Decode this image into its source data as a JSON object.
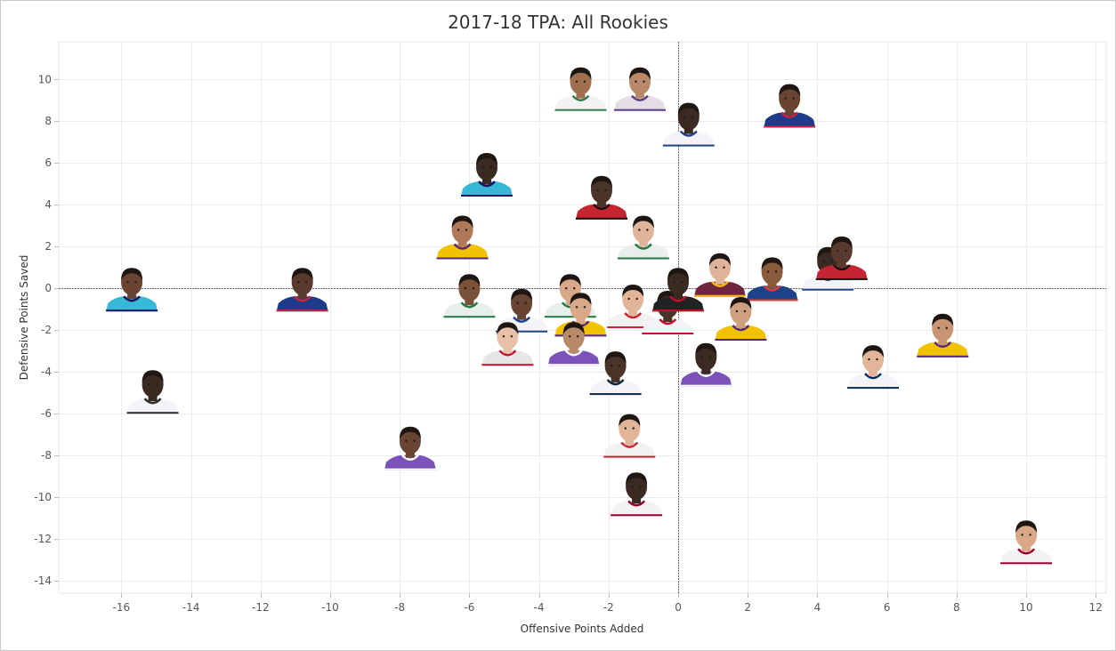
{
  "chart_data": {
    "type": "scatter",
    "title": "2017-18 TPA: All Rookies",
    "xlabel": "Offensive Points Added",
    "ylabel": "Defensive Points Saved",
    "xlim": [
      -17.8,
      12.3
    ],
    "ylim": [
      -14.6,
      11.8
    ],
    "xticks": [
      -16,
      -14,
      -12,
      -10,
      -8,
      -6,
      -4,
      -2,
      0,
      2,
      4,
      6,
      8,
      10,
      12
    ],
    "yticks": [
      10,
      8,
      6,
      4,
      2,
      0,
      -2,
      -4,
      -6,
      -8,
      -10,
      -12,
      -14
    ],
    "grid": true,
    "zero_lines": true,
    "marker": "player headshot",
    "points": [
      {
        "x": -2.8,
        "y": 9.3,
        "jersey": "#f2f2f2",
        "trim": "#2e7d4f",
        "skin": "#a0704e"
      },
      {
        "x": -1.1,
        "y": 9.3,
        "jersey": "#e4dde6",
        "trim": "#5a3e8a",
        "skin": "#b9896a"
      },
      {
        "x": 0.3,
        "y": 7.6,
        "jersey": "#f4f4f8",
        "trim": "#1d428a",
        "skin": "#3b2a22"
      },
      {
        "x": 3.2,
        "y": 8.5,
        "jersey": "#1e3a8a",
        "trim": "#d0203a",
        "skin": "#6a4433"
      },
      {
        "x": -5.5,
        "y": 5.2,
        "jersey": "#35b9d6",
        "trim": "#1d1160",
        "skin": "#3a2a22"
      },
      {
        "x": -2.2,
        "y": 4.1,
        "jersey": "#c62433",
        "trim": "#111111",
        "skin": "#4a3428"
      },
      {
        "x": -1.0,
        "y": 2.2,
        "jersey": "#e9eeea",
        "trim": "#1f7a45",
        "skin": "#e0b49a"
      },
      {
        "x": -6.2,
        "y": 2.2,
        "jersey": "#f2c200",
        "trim": "#552583",
        "skin": "#b07a58"
      },
      {
        "x": -15.7,
        "y": -0.3,
        "jersey": "#35b9d6",
        "trim": "#1d1160",
        "skin": "#6a4433"
      },
      {
        "x": -10.8,
        "y": -0.3,
        "jersey": "#1e3a8a",
        "trim": "#d0203a",
        "skin": "#5a3a2c"
      },
      {
        "x": -6.0,
        "y": -0.6,
        "jersey": "#e9eeea",
        "trim": "#1f7a45",
        "skin": "#7a5238"
      },
      {
        "x": -3.1,
        "y": -0.6,
        "jersey": "#e9eeea",
        "trim": "#1f7a45",
        "skin": "#d8a888"
      },
      {
        "x": -1.3,
        "y": -1.1,
        "jersey": "#f2f2f2",
        "trim": "#c62433",
        "skin": "#e3b598"
      },
      {
        "x": -4.5,
        "y": -1.3,
        "jersey": "#f4f4f8",
        "trim": "#1d428a",
        "skin": "#6a4433"
      },
      {
        "x": -2.8,
        "y": -1.5,
        "jersey": "#f2c200",
        "trim": "#552583",
        "skin": "#d8a888"
      },
      {
        "x": -0.3,
        "y": -1.4,
        "jersey": "#f4f4f8",
        "trim": "#c8102e",
        "skin": "#4a3428"
      },
      {
        "x": 0.0,
        "y": -0.3,
        "jersey": "#222222",
        "trim": "#c8102e",
        "skin": "#3b2a22"
      },
      {
        "x": 1.2,
        "y": 0.4,
        "jersey": "#6f263d",
        "trim": "#ffb81c",
        "skin": "#e0b49a"
      },
      {
        "x": 2.7,
        "y": 0.2,
        "jersey": "#1d428a",
        "trim": "#e03a3e",
        "skin": "#8a5a3c"
      },
      {
        "x": 4.3,
        "y": 0.7,
        "jersey": "#f4f4f8",
        "trim": "#1d428a",
        "skin": "#3b2a22"
      },
      {
        "x": 4.7,
        "y": 1.2,
        "jersey": "#c62433",
        "trim": "#111111",
        "skin": "#5a3a2c"
      },
      {
        "x": 1.8,
        "y": -1.7,
        "jersey": "#f2c200",
        "trim": "#552583",
        "skin": "#cfa080"
      },
      {
        "x": -4.9,
        "y": -2.9,
        "jersey": "#e6e6e6",
        "trim": "#c8102e",
        "skin": "#e8c0a8"
      },
      {
        "x": -3.0,
        "y": -2.9,
        "jersey": "#7b52b9",
        "trim": "#ffffff",
        "skin": "#b98a6a"
      },
      {
        "x": -1.8,
        "y": -4.3,
        "jersey": "#f4f4f8",
        "trim": "#0c2340",
        "skin": "#4a3428"
      },
      {
        "x": 0.8,
        "y": -3.9,
        "jersey": "#7b52b9",
        "trim": "#ffffff",
        "skin": "#3b2a22"
      },
      {
        "x": 5.6,
        "y": -4.0,
        "jersey": "#f4f4f8",
        "trim": "#002b5c",
        "skin": "#e3b598"
      },
      {
        "x": 7.6,
        "y": -2.5,
        "jersey": "#f2c200",
        "trim": "#552583",
        "skin": "#c89472"
      },
      {
        "x": -15.1,
        "y": -5.2,
        "jersey": "#f4f4f8",
        "trim": "#2b2b2b",
        "skin": "#3b2a22"
      },
      {
        "x": -7.7,
        "y": -7.9,
        "jersey": "#7b52b9",
        "trim": "#ffffff",
        "skin": "#6a4433"
      },
      {
        "x": -1.4,
        "y": -7.3,
        "jersey": "#f2f2f2",
        "trim": "#c62433",
        "skin": "#e3b598"
      },
      {
        "x": -1.2,
        "y": -10.1,
        "jersey": "#f2f2f2",
        "trim": "#98002e",
        "skin": "#3b2a22"
      },
      {
        "x": 10.0,
        "y": -12.4,
        "jersey": "#f2f2f2",
        "trim": "#98002e",
        "skin": "#d8a888"
      }
    ]
  }
}
